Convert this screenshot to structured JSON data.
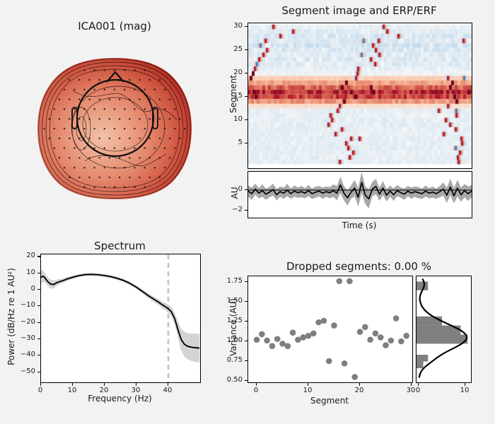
{
  "figure": {
    "bg_color": "#f2f2f2",
    "panel_bg": "#ffffff",
    "text_color": "#1a1a1a",
    "band_gray": "#9a9a9a",
    "marker_gray": "#7f7f7f"
  },
  "chart_data": {
    "topomap": {
      "type": "topomap",
      "title": "ICA001 (mag)",
      "palette": [
        "#f2c2a8",
        "#eca488",
        "#e4876c",
        "#d96a52",
        "#cc4f3c",
        "#b93227",
        "#a01c20",
        "#871018"
      ],
      "outline_color": "#111111"
    },
    "segments": {
      "type": "heatmap",
      "title": "Segment image and ERP/ERF",
      "ylabel": "Segment",
      "ytick_vals": [
        5,
        10,
        15,
        20,
        25,
        30
      ],
      "ytick_labels": [
        "5",
        "10",
        "15",
        "20",
        "25",
        "30"
      ],
      "n_segments": 30,
      "row_levels": [
        -0.13,
        -0.15,
        -0.13,
        -0.16,
        -0.14,
        -0.15,
        -0.12,
        -0.14,
        -0.16,
        -0.15,
        -0.13,
        -0.14,
        0.18,
        0.55,
        0.88,
        0.97,
        0.75,
        0.5,
        0.3,
        -0.08,
        -0.14,
        -0.2,
        -0.22,
        -0.2,
        -0.25,
        -0.28,
        -0.22,
        -0.25,
        -0.18,
        -0.12
      ],
      "artifacts": [
        [
          30,
          0.11,
          "o"
        ],
        [
          30,
          0.61,
          "o"
        ],
        [
          29,
          0.2,
          "o"
        ],
        [
          29,
          0.625,
          "o"
        ],
        [
          28,
          0.14,
          "o"
        ],
        [
          28,
          0.675,
          "o"
        ],
        [
          27,
          0.075,
          "o"
        ],
        [
          27,
          0.52,
          "b"
        ],
        [
          27,
          0.585,
          "o"
        ],
        [
          27,
          0.97,
          "o"
        ],
        [
          26,
          0.05,
          "b"
        ],
        [
          26,
          0.56,
          "o"
        ],
        [
          25,
          0.08,
          "o"
        ],
        [
          25,
          0.575,
          "o"
        ],
        [
          24,
          0.065,
          "o"
        ],
        [
          24,
          0.51,
          "b"
        ],
        [
          24,
          0.59,
          "o"
        ],
        [
          23,
          0.045,
          "o"
        ],
        [
          23,
          0.55,
          "o"
        ],
        [
          22,
          0.035,
          "b"
        ],
        [
          22,
          0.57,
          "o"
        ],
        [
          21,
          0.025,
          "o"
        ],
        [
          21,
          0.495,
          "o"
        ],
        [
          20,
          0.015,
          "r"
        ],
        [
          20,
          0.49,
          "o"
        ],
        [
          19,
          0.008,
          "r"
        ],
        [
          19,
          0.485,
          "o"
        ],
        [
          19,
          0.9,
          "o"
        ],
        [
          19,
          0.975,
          "b"
        ],
        [
          18,
          0.44,
          "r"
        ],
        [
          18,
          0.92,
          "r"
        ],
        [
          17,
          0.42,
          "r"
        ],
        [
          17,
          0.55,
          "r"
        ],
        [
          17,
          0.91,
          "r"
        ],
        [
          16,
          0.02,
          "r"
        ],
        [
          16,
          0.46,
          "r"
        ],
        [
          16,
          0.56,
          "r"
        ],
        [
          16,
          0.995,
          "r"
        ],
        [
          15,
          0.03,
          "r"
        ],
        [
          15,
          0.48,
          "r"
        ],
        [
          15,
          0.93,
          "r"
        ],
        [
          14,
          0.43,
          "r"
        ],
        [
          14,
          0.94,
          "r"
        ],
        [
          13,
          0.41,
          "o"
        ],
        [
          13,
          0.9,
          "o"
        ],
        [
          12,
          0.4,
          "o"
        ],
        [
          12,
          0.86,
          "o"
        ],
        [
          12,
          0.94,
          "b"
        ],
        [
          11,
          0.37,
          "o"
        ],
        [
          11,
          0.94,
          "o"
        ],
        [
          10,
          0.375,
          "o"
        ],
        [
          10,
          0.89,
          "o"
        ],
        [
          9,
          0.36,
          "o"
        ],
        [
          9,
          0.91,
          "o"
        ],
        [
          8,
          0.42,
          "o"
        ],
        [
          8,
          0.935,
          "o"
        ],
        [
          7,
          0.39,
          "o"
        ],
        [
          7,
          0.88,
          "o"
        ],
        [
          6,
          0.46,
          "o"
        ],
        [
          6,
          0.5,
          "o"
        ],
        [
          6,
          0.96,
          "o"
        ],
        [
          5,
          0.44,
          "o"
        ],
        [
          5,
          0.965,
          "o"
        ],
        [
          4,
          0.45,
          "o"
        ],
        [
          4,
          0.935,
          "b"
        ],
        [
          3,
          0.47,
          "o"
        ],
        [
          3,
          0.955,
          "o"
        ],
        [
          2,
          0.455,
          "o"
        ],
        [
          2,
          0.945,
          "o"
        ],
        [
          1,
          0.41,
          "o"
        ],
        [
          1,
          0.95,
          "o"
        ]
      ]
    },
    "erp": {
      "type": "line",
      "ylabel": "AU",
      "xlabel": "Time (s)",
      "ytick_vals": [
        0,
        -2
      ],
      "ytick_labels": [
        "0",
        "−2"
      ],
      "ylim": [
        1.8,
        -2.7
      ],
      "mean": [
        -0.1,
        -0.35,
        0.1,
        -0.3,
        -0.05,
        -0.4,
        -0.2,
        0.05,
        -0.45,
        -0.15,
        -0.3,
        0.0,
        -0.35,
        -0.1,
        -0.25,
        -0.15,
        -0.3,
        -0.05,
        -0.35,
        -0.2,
        -0.1,
        -0.3,
        -0.15,
        -0.25,
        -0.05,
        -0.3,
        0.5,
        -0.3,
        -0.75,
        -0.2,
        0.2,
        -0.7,
        0.75,
        -0.5,
        -0.85,
        0.1,
        0.35,
        -0.4,
        0.2,
        -0.5,
        -0.1,
        -0.45,
        -0.05,
        -0.25,
        -0.4,
        -0.1,
        -0.3,
        -0.15,
        -0.25,
        -0.35,
        -0.1,
        -0.3,
        -0.2,
        -0.35,
        -0.15,
        0.1,
        -0.5,
        0.3,
        -0.55,
        0.2,
        -0.45,
        -0.05,
        -0.35,
        -0.1
      ],
      "band_halfwidth": [
        0.55,
        0.6,
        0.55,
        0.5,
        0.6,
        0.55,
        0.5,
        0.6,
        0.55,
        0.5,
        0.55,
        0.6,
        0.5,
        0.55,
        0.5,
        0.55,
        0.5,
        0.55,
        0.5,
        0.55,
        0.5,
        0.55,
        0.5,
        0.55,
        0.6,
        0.7,
        0.8,
        0.7,
        0.75,
        0.65,
        0.8,
        0.9,
        1.05,
        0.85,
        0.95,
        0.7,
        0.75,
        0.65,
        0.7,
        0.6,
        0.55,
        0.6,
        0.55,
        0.5,
        0.55,
        0.5,
        0.55,
        0.5,
        0.55,
        0.5,
        0.55,
        0.5,
        0.55,
        0.5,
        0.55,
        0.65,
        0.75,
        0.8,
        0.75,
        0.8,
        0.7,
        0.65,
        0.7,
        0.6
      ]
    },
    "spectrum": {
      "type": "line",
      "title": "Spectrum",
      "xlabel": "Frequency (Hz)",
      "ylabel": "Power (dB/Hz re 1 AU²)",
      "xtick_vals": [
        0,
        10,
        20,
        30,
        40
      ],
      "xtick_labels": [
        "0",
        "10",
        "20",
        "30",
        "40"
      ],
      "ytick_vals": [
        20,
        10,
        0,
        -10,
        -20,
        -30,
        -40,
        -50
      ],
      "ytick_labels": [
        "20",
        "10",
        "0",
        "−10",
        "−20",
        "−30",
        "−40",
        "−50"
      ],
      "xlim": [
        0,
        50
      ],
      "ylim": [
        21.5,
        -56
      ],
      "vline_x": 40,
      "x": [
        0,
        0.5,
        1,
        1.5,
        2,
        3,
        4,
        5,
        6,
        7,
        8,
        10,
        12,
        14,
        16,
        18,
        20,
        22,
        24,
        26,
        28,
        30,
        32,
        34,
        35,
        36,
        37,
        38,
        39,
        40,
        41,
        42,
        43,
        44,
        45,
        46,
        47,
        48,
        49,
        49.8
      ],
      "y": [
        7.5,
        8.2,
        7.8,
        6.5,
        5.2,
        3.4,
        3.2,
        4.3,
        5.0,
        5.6,
        6.4,
        7.6,
        8.6,
        9.2,
        9.3,
        9.1,
        8.6,
        7.9,
        6.9,
        5.6,
        3.8,
        1.5,
        -1.2,
        -4.0,
        -5.2,
        -6.4,
        -7.6,
        -9.0,
        -10.2,
        -11.5,
        -13.5,
        -17.5,
        -24.0,
        -30.0,
        -33.0,
        -34.3,
        -34.8,
        -35.1,
        -35.3,
        -35.4
      ],
      "band_halfwidth": [
        4.5,
        3.5,
        3.0,
        2.8,
        2.6,
        2.8,
        2.4,
        1.8,
        1.5,
        1.3,
        1.2,
        1.0,
        0.9,
        0.9,
        0.9,
        0.9,
        0.9,
        0.9,
        1.0,
        1.0,
        1.1,
        1.2,
        1.3,
        1.5,
        1.6,
        1.7,
        1.8,
        2.0,
        2.2,
        2.5,
        2.8,
        3.5,
        5.0,
        6.5,
        7.5,
        8.0,
        8.3,
        8.5,
        8.6,
        8.7
      ]
    },
    "variance": {
      "type": "scatter",
      "title": "Dropped segments: 0.00 %",
      "xlabel": "Segment",
      "ylabel": "Variance (AU)",
      "xtick_vals": [
        0,
        10,
        20,
        30
      ],
      "xtick_labels": [
        "0",
        "10",
        "20",
        "30"
      ],
      "ytick_vals": [
        1.75,
        1.5,
        1.25,
        1.0,
        0.75,
        0.5
      ],
      "ytick_labels": [
        "1.75",
        "1.50",
        "1.25",
        "1.00",
        "0.75",
        "0.50"
      ],
      "xlim": [
        -1.6,
        30.2
      ],
      "ylim": [
        1.82,
        0.48
      ],
      "segments": [
        0,
        1,
        2,
        3,
        4,
        5,
        6,
        7,
        8,
        9,
        10,
        11,
        12,
        13,
        14,
        15,
        16,
        17,
        18,
        19,
        20,
        21,
        22,
        23,
        24,
        25,
        26,
        27,
        28,
        29
      ],
      "values": [
        1.02,
        1.09,
        1.01,
        0.94,
        1.03,
        0.97,
        0.94,
        1.11,
        1.02,
        1.05,
        1.07,
        1.1,
        1.24,
        1.26,
        0.75,
        1.2,
        1.76,
        0.72,
        1.76,
        0.55,
        1.12,
        1.18,
        1.02,
        1.1,
        1.05,
        0.95,
        1.01,
        1.29,
        1.0,
        1.07
      ]
    },
    "histogram": {
      "type": "histogram",
      "orientation": "horizontal",
      "xtick_vals": [
        0,
        10
      ],
      "xtick_labels": [
        "0",
        "10"
      ],
      "bars": [
        {
          "lo": 1.645,
          "hi": 1.755,
          "n": 2
        },
        {
          "lo": 1.2,
          "hi": 1.315,
          "n": 5
        },
        {
          "lo": 1.085,
          "hi": 1.2,
          "n": 9
        },
        {
          "lo": 0.97,
          "hi": 1.085,
          "n": 10.5
        },
        {
          "lo": 0.745,
          "hi": 0.83,
          "n": 2
        },
        {
          "lo": 0.66,
          "hi": 0.745,
          "n": 1
        }
      ],
      "fit_curve": {
        "components": [
          {
            "mu": 1.05,
            "sigma": 0.17,
            "amp": 10.3
          },
          {
            "mu": 1.72,
            "sigma": 0.08,
            "amp": 1.2
          },
          {
            "mu": 0.75,
            "sigma": 0.07,
            "amp": 0.8
          }
        ],
        "v_range": [
          0.53,
          1.79
        ]
      }
    }
  }
}
